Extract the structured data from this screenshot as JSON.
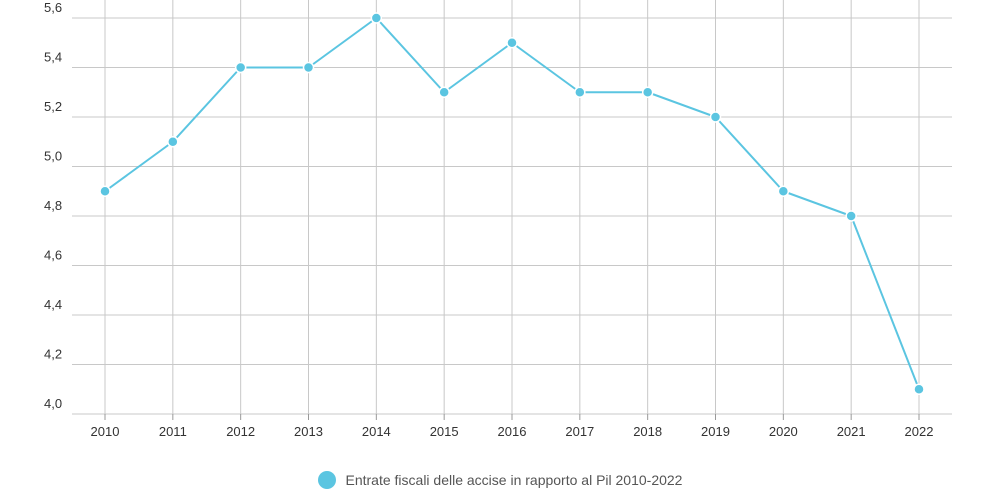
{
  "chart_data": {
    "type": "line",
    "categories": [
      "2010",
      "2011",
      "2012",
      "2013",
      "2014",
      "2015",
      "2016",
      "2017",
      "2018",
      "2019",
      "2020",
      "2021",
      "2022"
    ],
    "series": [
      {
        "name": "Entrate fiscali delle accise in rapporto al Pil 2010-2022",
        "values": [
          4.9,
          5.1,
          5.4,
          5.4,
          5.6,
          5.3,
          5.5,
          5.3,
          5.3,
          5.2,
          4.9,
          4.8,
          4.1
        ],
        "color": "#5BC5E1"
      }
    ],
    "yticks": [
      "4,0",
      "4,2",
      "4,4",
      "4,6",
      "4,8",
      "5,0",
      "5,2",
      "5,4",
      "5,6"
    ],
    "ylim": [
      4.0,
      5.6
    ],
    "grid": true,
    "legend_position": "bottom-center",
    "grid_color": "#c8c8c8"
  }
}
